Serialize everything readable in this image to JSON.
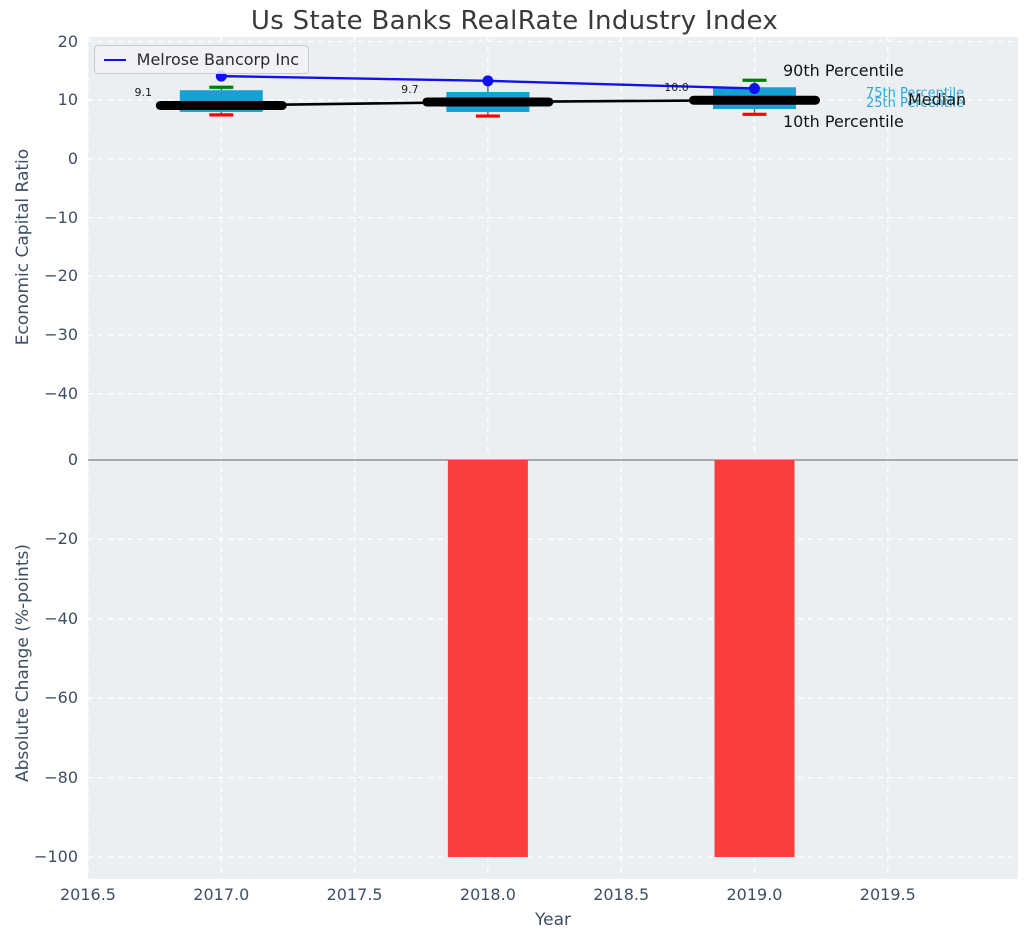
{
  "figure": {
    "title": "Us State Banks RealRate Industry Index"
  },
  "colors": {
    "plot_bg": "#eceff1",
    "grid": "#ffffff",
    "zero_line": "#a9a9a9",
    "box_fill": "#16a0d3",
    "whisker": "#555555",
    "cap_90": "#008000",
    "cap_10": "#ff0000",
    "median_line": "#000000",
    "company_line": "#1111ee",
    "bar_fill": "#fa3e3e",
    "tick_text": "#3e4e63",
    "annotation_cyan": "#2ba7d8",
    "annotation_dark": "#141414"
  },
  "chart_data": [
    {
      "type": "box",
      "title": "Us State Banks RealRate Industry Index",
      "ylabel": "Economic Capital Ratio",
      "legend_label": "Melrose Bancorp Inc",
      "legend_position": "upper left",
      "grid": true,
      "x": [
        2017,
        2018,
        2019
      ],
      "xlim": [
        2016.5,
        2020.0
      ],
      "ylim": [
        -48,
        21
      ],
      "x_ticks": [
        2016.5,
        2017.0,
        2017.5,
        2018.0,
        2018.5,
        2019.0,
        2019.5
      ],
      "x_tick_labels": [
        "2016.5",
        "2017.0",
        "2017.5",
        "2018.0",
        "2018.5",
        "2019.0",
        "2019.5"
      ],
      "y_ticks": [
        20,
        10,
        0,
        -10,
        -20,
        -30,
        -40
      ],
      "y_tick_labels": [
        "20",
        "10",
        "0",
        "−10",
        "−20",
        "−30",
        "−40"
      ],
      "box_width_years": 0.31,
      "series": [
        {
          "role": "p90",
          "name": "90th Percentile",
          "values": [
            12.2,
            13.3,
            13.4
          ],
          "cap_visible": [
            true,
            false,
            true
          ]
        },
        {
          "role": "p75",
          "name": "75th Percentile",
          "values": [
            11.7,
            11.4,
            12.2
          ]
        },
        {
          "role": "median",
          "name": "Median",
          "values": [
            9.1,
            9.7,
            10.0
          ]
        },
        {
          "role": "p25",
          "name": "25th Percentile",
          "values": [
            8.0,
            8.0,
            8.5
          ]
        },
        {
          "role": "p10",
          "name": "10th Percentile",
          "values": [
            7.5,
            7.3,
            7.6
          ]
        },
        {
          "role": "company",
          "name": "Melrose Bancorp Inc",
          "values": [
            14.1,
            13.3,
            12.0
          ]
        }
      ],
      "median_labels": [
        "9.1",
        "9.7",
        "10.0"
      ],
      "annotations": [
        {
          "id": "p90",
          "text": "90th Percentile",
          "style": "dark"
        },
        {
          "id": "p75",
          "text": "75th Percentile",
          "style": "cyan"
        },
        {
          "id": "p25",
          "text": "25th Percentile",
          "style": "cyan"
        },
        {
          "id": "median",
          "text": "Median",
          "style": "dark"
        },
        {
          "id": "p10",
          "text": "10th Percentile",
          "style": "dark"
        }
      ]
    },
    {
      "type": "bar",
      "ylabel": "Absolute Change (%-points)",
      "xlabel": "Year",
      "grid": true,
      "x": [
        2018,
        2019
      ],
      "values": [
        -100,
        -100
      ],
      "bar_width_years": 0.3,
      "xlim": [
        2016.5,
        2020.0
      ],
      "ylim": [
        -105,
        3
      ],
      "y_ticks": [
        0,
        -20,
        -40,
        -60,
        -80,
        -100
      ],
      "y_tick_labels": [
        "0",
        "−20",
        "−40",
        "−60",
        "−80",
        "−100"
      ],
      "zero_line": true
    }
  ]
}
